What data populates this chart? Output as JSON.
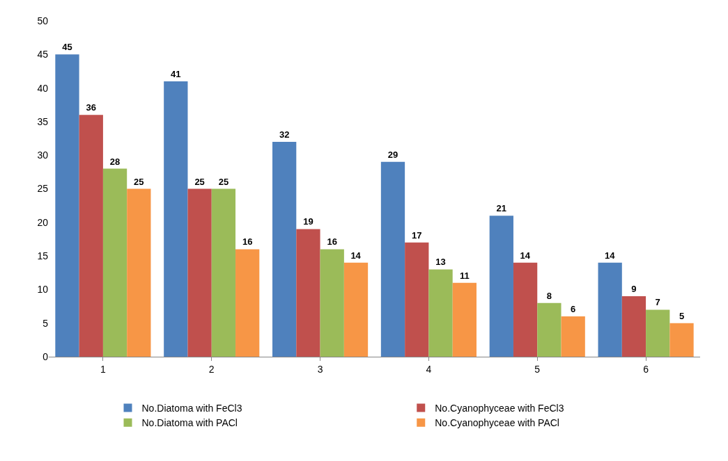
{
  "chart_data": {
    "type": "bar",
    "categories": [
      "1",
      "2",
      "3",
      "4",
      "5",
      "6"
    ],
    "series": [
      {
        "name": "No.Diatoma with FeCl3",
        "color": "#4f81bd",
        "values": [
          45,
          41,
          32,
          29,
          21,
          14
        ]
      },
      {
        "name": "No.Cyanophyceae with FeCl3",
        "color": "#c0504d",
        "values": [
          36,
          25,
          19,
          17,
          14,
          9
        ]
      },
      {
        "name": "No.Diatoma with PACl",
        "color": "#9bbb59",
        "values": [
          28,
          25,
          16,
          13,
          8,
          7
        ]
      },
      {
        "name": "No.Cyanophyceae with PACl",
        "color": "#f79646",
        "values": [
          25,
          16,
          14,
          11,
          6,
          5
        ]
      }
    ],
    "ylim": [
      0,
      50
    ],
    "yticks": [
      0,
      5,
      10,
      15,
      20,
      25,
      30,
      35,
      40,
      45,
      50
    ],
    "legend": "bottom",
    "data_labels": true
  }
}
